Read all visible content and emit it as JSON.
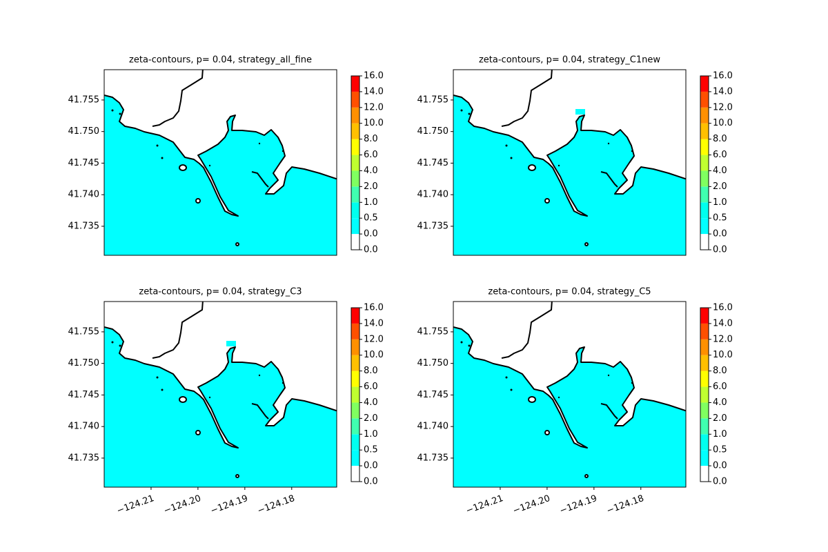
{
  "chart_data": [
    {
      "type": "contour",
      "title": "zeta-contours, p= 0.04, strategy_all_fine",
      "xlim": [
        -124.22,
        -124.1704
      ],
      "ylim": [
        41.7304,
        41.7598
      ],
      "yticks": [
        41.735,
        {
          "value": 41.74,
          "label": "41.740"
        },
        41.745,
        {
          "value": 41.75,
          "label": "41.750"
        },
        41.755
      ],
      "colorbar": {
        "levels": [
          {
            "value": 0,
            "label": "0.0"
          },
          {
            "value": 0.01,
            "label": "0.0"
          },
          0.5,
          {
            "value": 1,
            "label": "1.0"
          },
          {
            "value": 2,
            "label": "2.0"
          },
          {
            "value": 4,
            "label": "4.0"
          },
          {
            "value": 6,
            "label": "6.0"
          },
          {
            "value": 8,
            "label": "8.0"
          },
          {
            "value": 10,
            "label": "10.0"
          },
          {
            "value": 12,
            "label": "12.0"
          },
          {
            "value": 14,
            "label": "14.0"
          },
          {
            "value": 16,
            "label": "16.0"
          }
        ],
        "colors": [
          "#ffffff",
          "#00ffff",
          "#00ffef",
          "#40ffb0",
          "#80ff60",
          "#c0ff30",
          "#ffff00",
          "#ffc000",
          "#ff9000",
          "#ff5000",
          "#ff0000"
        ]
      }
    },
    {
      "type": "contour",
      "title": "zeta-contours, p= 0.04, strategy_C1new",
      "xlim": [
        -124.22,
        -124.1704
      ],
      "ylim": [
        41.7304,
        41.7598
      ],
      "yticks": [
        41.735,
        {
          "value": 41.74,
          "label": "41.740"
        },
        41.745,
        {
          "value": 41.75,
          "label": "41.750"
        },
        41.755
      ],
      "colorbar": {
        "levels": [
          {
            "value": 0,
            "label": "0.0"
          },
          {
            "value": 0.01,
            "label": "0.0"
          },
          0.5,
          {
            "value": 1,
            "label": "1.0"
          },
          {
            "value": 2,
            "label": "2.0"
          },
          {
            "value": 4,
            "label": "4.0"
          },
          {
            "value": 6,
            "label": "6.0"
          },
          {
            "value": 8,
            "label": "8.0"
          },
          {
            "value": 10,
            "label": "10.0"
          },
          {
            "value": 12,
            "label": "12.0"
          },
          {
            "value": 14,
            "label": "14.0"
          },
          {
            "value": 16,
            "label": "16.0"
          }
        ],
        "colors": [
          "#ffffff",
          "#00ffff",
          "#00ffef",
          "#40ffb0",
          "#80ff60",
          "#c0ff30",
          "#ffff00",
          "#ffc000",
          "#ff9000",
          "#ff5000",
          "#ff0000"
        ]
      }
    },
    {
      "type": "contour",
      "title": "zeta-contours, p= 0.04, strategy_C3",
      "xlim": [
        -124.22,
        -124.1704
      ],
      "ylim": [
        41.7304,
        41.7598
      ],
      "xticks": [
        {
          "value": -124.21,
          "label": "−124.21"
        },
        {
          "value": -124.2,
          "label": "−124.20"
        },
        {
          "value": -124.19,
          "label": "−124.19"
        },
        {
          "value": -124.18,
          "label": "−124.18"
        }
      ],
      "yticks": [
        41.735,
        {
          "value": 41.74,
          "label": "41.740"
        },
        41.745,
        {
          "value": 41.75,
          "label": "41.750"
        },
        41.755
      ],
      "colorbar": {
        "levels": [
          {
            "value": 0,
            "label": "0.0"
          },
          {
            "value": 0.01,
            "label": "0.0"
          },
          0.5,
          {
            "value": 1,
            "label": "1.0"
          },
          {
            "value": 2,
            "label": "2.0"
          },
          {
            "value": 4,
            "label": "4.0"
          },
          {
            "value": 6,
            "label": "6.0"
          },
          {
            "value": 8,
            "label": "8.0"
          },
          {
            "value": 10,
            "label": "10.0"
          },
          {
            "value": 12,
            "label": "12.0"
          },
          {
            "value": 14,
            "label": "14.0"
          },
          {
            "value": 16,
            "label": "16.0"
          }
        ],
        "colors": [
          "#ffffff",
          "#00ffff",
          "#00ffef",
          "#40ffb0",
          "#80ff60",
          "#c0ff30",
          "#ffff00",
          "#ffc000",
          "#ff9000",
          "#ff5000",
          "#ff0000"
        ]
      }
    },
    {
      "type": "contour",
      "title": "zeta-contours, p= 0.04, strategy_C5",
      "xlim": [
        -124.22,
        -124.1704
      ],
      "ylim": [
        41.7304,
        41.7598
      ],
      "xticks": [
        {
          "value": -124.21,
          "label": "−124.21"
        },
        {
          "value": -124.2,
          "label": "−124.20"
        },
        {
          "value": -124.19,
          "label": "−124.19"
        },
        {
          "value": -124.18,
          "label": "−124.18"
        }
      ],
      "yticks": [
        41.735,
        {
          "value": 41.74,
          "label": "41.740"
        },
        41.745,
        {
          "value": 41.75,
          "label": "41.750"
        },
        41.755
      ],
      "colorbar": {
        "levels": [
          {
            "value": 0,
            "label": "0.0"
          },
          {
            "value": 0.01,
            "label": "0.0"
          },
          0.5,
          {
            "value": 1,
            "label": "1.0"
          },
          {
            "value": 2,
            "label": "2.0"
          },
          {
            "value": 4,
            "label": "4.0"
          },
          {
            "value": 6,
            "label": "6.0"
          },
          {
            "value": 8,
            "label": "8.0"
          },
          {
            "value": 10,
            "label": "10.0"
          },
          {
            "value": 12,
            "label": "12.0"
          },
          {
            "value": 14,
            "label": "14.0"
          },
          {
            "value": 16,
            "label": "16.0"
          }
        ],
        "colors": [
          "#ffffff",
          "#00ffff",
          "#00ffef",
          "#40ffb0",
          "#80ff60",
          "#c0ff30",
          "#ffff00",
          "#ffc000",
          "#ff9000",
          "#ff5000",
          "#ff0000"
        ]
      }
    }
  ]
}
